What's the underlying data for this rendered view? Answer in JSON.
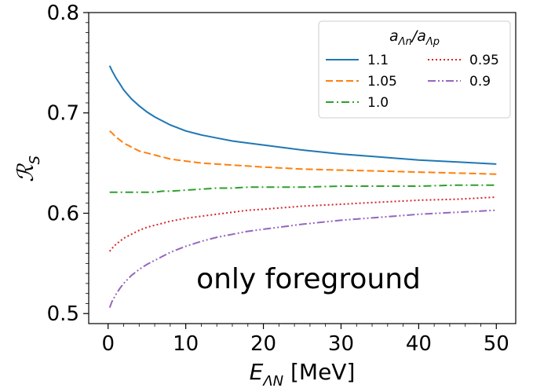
{
  "chart_data": {
    "type": "line",
    "xlabel": "E_{ΛN} [MeV]",
    "ylabel": "R_S",
    "xlim": [
      -2.5,
      52.5
    ],
    "ylim": [
      0.49,
      0.8
    ],
    "xticks": [
      0,
      10,
      20,
      30,
      40,
      50
    ],
    "yticks": [
      0.5,
      0.6,
      0.7,
      0.8
    ],
    "xtick_labels": [
      "0",
      "10",
      "20",
      "30",
      "40",
      "50"
    ],
    "ytick_labels": [
      "0.5",
      "0.6",
      "0.7",
      "0.8"
    ],
    "legend": {
      "title": "a_{Λn}/a_{Λp}",
      "placement": "top-right",
      "columns": 2
    },
    "annotation": "only foreground",
    "grid": false,
    "x": [
      0.2,
      0.5,
      1,
      1.5,
      2,
      3,
      4,
      5,
      6,
      7,
      8,
      10,
      12,
      14,
      16,
      18,
      20,
      25,
      30,
      35,
      40,
      45,
      50
    ],
    "series": [
      {
        "name": "1.1",
        "color": "#1f77b4",
        "dash": "solid",
        "values": [
          0.747,
          0.742,
          0.735,
          0.729,
          0.723,
          0.714,
          0.707,
          0.701,
          0.696,
          0.692,
          0.688,
          0.682,
          0.678,
          0.675,
          0.672,
          0.67,
          0.668,
          0.663,
          0.659,
          0.656,
          0.653,
          0.651,
          0.649
        ]
      },
      {
        "name": "1.05",
        "color": "#ff7f0e",
        "dash": "dashed",
        "values": [
          0.682,
          0.68,
          0.676,
          0.673,
          0.67,
          0.666,
          0.662,
          0.66,
          0.658,
          0.656,
          0.654,
          0.652,
          0.65,
          0.649,
          0.648,
          0.647,
          0.646,
          0.644,
          0.643,
          0.642,
          0.641,
          0.64,
          0.639
        ]
      },
      {
        "name": "1.0",
        "color": "#2ca02c",
        "dash": "dashdot",
        "values": [
          0.621,
          0.621,
          0.621,
          0.621,
          0.621,
          0.621,
          0.621,
          0.621,
          0.621,
          0.622,
          0.622,
          0.623,
          0.624,
          0.625,
          0.625,
          0.626,
          0.626,
          0.626,
          0.627,
          0.627,
          0.627,
          0.628,
          0.628
        ]
      },
      {
        "name": "0.95",
        "color": "#d62728",
        "dash": "dotted",
        "values": [
          0.562,
          0.565,
          0.569,
          0.572,
          0.575,
          0.579,
          0.583,
          0.586,
          0.588,
          0.59,
          0.592,
          0.595,
          0.597,
          0.599,
          0.601,
          0.603,
          0.604,
          0.607,
          0.609,
          0.611,
          0.613,
          0.614,
          0.616
        ]
      },
      {
        "name": "0.9",
        "color": "#9467bd",
        "dash": "dashdotdot",
        "values": [
          0.506,
          0.512,
          0.519,
          0.525,
          0.53,
          0.538,
          0.544,
          0.549,
          0.553,
          0.557,
          0.561,
          0.567,
          0.572,
          0.576,
          0.579,
          0.582,
          0.584,
          0.589,
          0.593,
          0.596,
          0.599,
          0.601,
          0.603
        ]
      }
    ]
  }
}
